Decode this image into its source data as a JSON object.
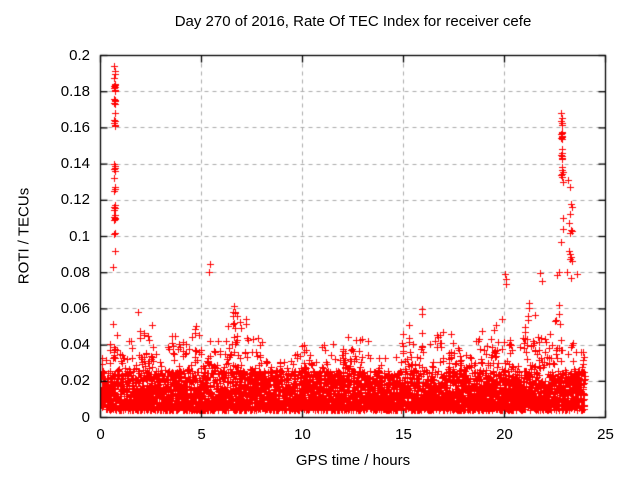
{
  "colors": {
    "marker": "#ff0000",
    "grid": "#aaaaaa",
    "axis": "#000000",
    "text": "#000000",
    "background": "#ffffff"
  },
  "chart_data": {
    "type": "scatter",
    "title": "Day 270 of 2016, Rate Of TEC Index for receiver cefe",
    "xlabel": "GPS time / hours",
    "ylabel": "ROTI / TECUs",
    "xlim": [
      0,
      25
    ],
    "ylim": [
      0,
      0.2
    ],
    "grid": true,
    "legend": false,
    "marker": {
      "shape": "plus",
      "size": 7,
      "color": "#ff0000"
    },
    "xticks": {
      "values": [
        0,
        5,
        10,
        15,
        20,
        25
      ],
      "labels": [
        "0",
        "5",
        "10",
        "15",
        "20",
        "25"
      ]
    },
    "yticks": {
      "values": [
        0,
        0.02,
        0.04,
        0.06,
        0.08,
        0.1,
        0.12,
        0.14,
        0.16,
        0.18,
        0.2
      ],
      "labels": [
        "0",
        "0.02",
        "0.04",
        "0.06",
        "0.08",
        "0.1",
        "0.12",
        "0.14",
        "0.16",
        "0.18",
        "0.2"
      ]
    },
    "series_name": "ROTI",
    "data_summary": "Dense band of ~5000 ROTI samples between 0.005 and 0.03 TECU across 0-24 h with intermittent bursts to 0.04-0.08; strong vertical spike near 0.7 h reaching 0.194 TECU and second spike near 22.8-23.4 h reaching 0.168 TECU; data ends at 24 h.",
    "band_model": {
      "seed": 20160270,
      "n_points": 5200,
      "x_start": 0.03,
      "x_end": 23.97,
      "base_min": 0.004,
      "core_top": 0.026
    },
    "envelope_segments": [
      [
        0.0,
        0.55,
        0.052
      ],
      [
        0.55,
        0.95,
        0.062
      ],
      [
        0.95,
        1.45,
        0.058
      ],
      [
        1.45,
        2.05,
        0.074
      ],
      [
        2.05,
        2.6,
        0.07
      ],
      [
        2.6,
        3.4,
        0.05
      ],
      [
        3.4,
        4.0,
        0.056
      ],
      [
        4.0,
        5.0,
        0.06
      ],
      [
        5.0,
        5.55,
        0.064
      ],
      [
        5.55,
        6.15,
        0.048
      ],
      [
        6.15,
        7.3,
        0.069
      ],
      [
        7.3,
        8.0,
        0.056
      ],
      [
        8.0,
        9.6,
        0.04
      ],
      [
        9.6,
        10.6,
        0.054
      ],
      [
        10.6,
        11.9,
        0.048
      ],
      [
        11.9,
        13.5,
        0.056
      ],
      [
        13.5,
        14.8,
        0.044
      ],
      [
        14.8,
        15.7,
        0.06
      ],
      [
        15.7,
        17.0,
        0.066
      ],
      [
        17.0,
        18.2,
        0.05
      ],
      [
        18.2,
        19.6,
        0.054
      ],
      [
        19.6,
        20.4,
        0.075
      ],
      [
        20.4,
        21.0,
        0.052
      ],
      [
        21.0,
        21.7,
        0.072
      ],
      [
        21.7,
        22.4,
        0.062
      ],
      [
        22.4,
        23.0,
        0.072
      ],
      [
        23.0,
        23.45,
        0.058
      ],
      [
        23.45,
        24.0,
        0.04
      ]
    ],
    "outliers": [
      [
        0.68,
        0.194
      ],
      [
        0.72,
        0.1915
      ],
      [
        0.7,
        0.19
      ],
      [
        0.66,
        0.1875
      ],
      [
        0.7,
        0.1845
      ],
      [
        0.73,
        0.1835
      ],
      [
        0.68,
        0.183
      ],
      [
        0.71,
        0.1825
      ],
      [
        0.69,
        0.182
      ],
      [
        0.72,
        0.1812
      ],
      [
        0.7,
        0.1805
      ],
      [
        0.67,
        0.1762
      ],
      [
        0.7,
        0.1755
      ],
      [
        0.72,
        0.1748
      ],
      [
        0.69,
        0.174
      ],
      [
        0.71,
        0.1732
      ],
      [
        0.7,
        0.168
      ],
      [
        0.68,
        0.1645
      ],
      [
        0.71,
        0.1638
      ],
      [
        0.69,
        0.1625
      ],
      [
        0.72,
        0.1618
      ],
      [
        0.7,
        0.161
      ],
      [
        0.66,
        0.1402
      ],
      [
        0.7,
        0.1392
      ],
      [
        0.73,
        0.1378
      ],
      [
        0.68,
        0.1371
      ],
      [
        0.71,
        0.1362
      ],
      [
        0.69,
        0.1322
      ],
      [
        0.7,
        0.1272
      ],
      [
        0.72,
        0.1265
      ],
      [
        0.68,
        0.1252
      ],
      [
        0.7,
        0.1175
      ],
      [
        0.67,
        0.1162
      ],
      [
        0.71,
        0.1155
      ],
      [
        0.69,
        0.1148
      ],
      [
        0.7,
        0.1118
      ],
      [
        0.68,
        0.1108
      ],
      [
        0.72,
        0.1102
      ],
      [
        0.7,
        0.1096
      ],
      [
        0.69,
        0.109
      ],
      [
        0.71,
        0.1022
      ],
      [
        0.68,
        0.1015
      ],
      [
        0.7,
        0.092
      ],
      [
        0.64,
        0.083
      ],
      [
        22.82,
        0.168
      ],
      [
        22.85,
        0.1652
      ],
      [
        22.8,
        0.1638
      ],
      [
        22.84,
        0.1625
      ],
      [
        22.87,
        0.1615
      ],
      [
        22.83,
        0.158
      ],
      [
        22.86,
        0.1572
      ],
      [
        22.82,
        0.1565
      ],
      [
        22.85,
        0.1558
      ],
      [
        22.84,
        0.1552
      ],
      [
        22.81,
        0.1546
      ],
      [
        22.86,
        0.154
      ],
      [
        22.83,
        0.1482
      ],
      [
        22.85,
        0.146
      ],
      [
        22.82,
        0.1452
      ],
      [
        22.86,
        0.1444
      ],
      [
        22.84,
        0.1436
      ],
      [
        22.87,
        0.1428
      ],
      [
        22.83,
        0.1385
      ],
      [
        22.85,
        0.1368
      ],
      [
        22.88,
        0.1356
      ],
      [
        22.84,
        0.1346
      ],
      [
        22.81,
        0.1338
      ],
      [
        22.86,
        0.133
      ],
      [
        22.9,
        0.1302
      ],
      [
        23.15,
        0.1312
      ],
      [
        23.22,
        0.1272
      ],
      [
        23.3,
        0.1178
      ],
      [
        23.35,
        0.1165
      ],
      [
        23.25,
        0.1122
      ],
      [
        22.88,
        0.1102
      ],
      [
        22.92,
        0.1042
      ],
      [
        23.2,
        0.1072
      ],
      [
        23.28,
        0.1038
      ],
      [
        23.32,
        0.103
      ],
      [
        23.24,
        0.1022
      ],
      [
        22.8,
        0.0972
      ],
      [
        23.18,
        0.0918
      ],
      [
        23.26,
        0.0902
      ],
      [
        23.3,
        0.0888
      ],
      [
        23.22,
        0.0878
      ],
      [
        23.34,
        0.0866
      ],
      [
        23.1,
        0.0806
      ],
      [
        23.3,
        0.0772
      ],
      [
        22.7,
        0.0802
      ],
      [
        22.58,
        0.0786
      ],
      [
        20.02,
        0.0792
      ],
      [
        20.08,
        0.0764
      ],
      [
        20.05,
        0.0738
      ],
      [
        21.78,
        0.0796
      ],
      [
        21.85,
        0.0756
      ],
      [
        23.57,
        0.0794
      ],
      [
        5.42,
        0.0846
      ],
      [
        5.36,
        0.0802
      ]
    ]
  }
}
